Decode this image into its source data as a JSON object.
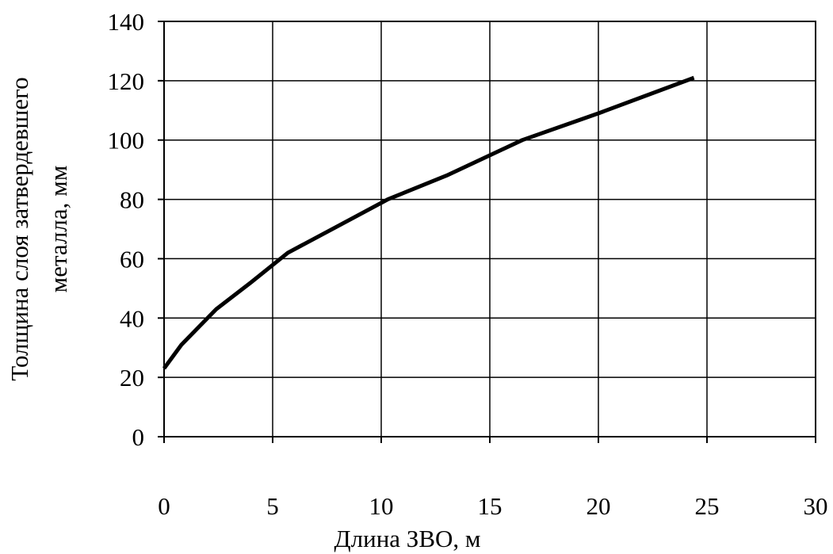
{
  "chart_data": {
    "type": "line",
    "title": "",
    "xlabel": "Длина ЗВО, м",
    "ylabel_lines": [
      "Толщина слоя затвердевшего",
      "металла, мм"
    ],
    "xlim": [
      0,
      30
    ],
    "ylim": [
      0,
      140
    ],
    "x_ticks": [
      0,
      5,
      10,
      15,
      20,
      25,
      30
    ],
    "y_ticks": [
      0,
      20,
      40,
      60,
      80,
      100,
      120,
      140
    ],
    "x_tick_labels": [
      "0",
      "5",
      "10",
      "15",
      "20",
      "25",
      "30"
    ],
    "y_tick_labels": [
      "0",
      "20",
      "40",
      "60",
      "80",
      "100",
      "120",
      "140"
    ],
    "grid": true,
    "legend": "none",
    "line_color": "#000000",
    "series": [
      {
        "x": [
          0.0,
          0.8,
          2.4,
          4.0,
          5.7,
          8.0,
          10.3,
          13.0,
          16.5,
          20.0,
          24.4
        ],
        "values": [
          23,
          31,
          43,
          52,
          62,
          71,
          80,
          88,
          100,
          109,
          121
        ]
      }
    ]
  }
}
